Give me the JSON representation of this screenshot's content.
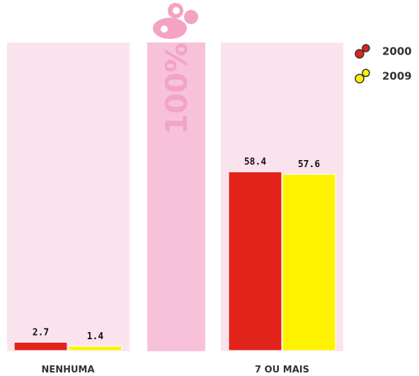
{
  "chart_data": {
    "type": "bar",
    "categories": [
      "NENHUMA",
      "7 OU MAIS"
    ],
    "series": [
      {
        "name": "2000",
        "color": "#e2231a",
        "values": [
          2.7,
          58.4
        ]
      },
      {
        "name": "2009",
        "color": "#fff200",
        "values": [
          1.4,
          57.6
        ]
      }
    ],
    "ylim": [
      0,
      100
    ],
    "max_label": "100%"
  }
}
